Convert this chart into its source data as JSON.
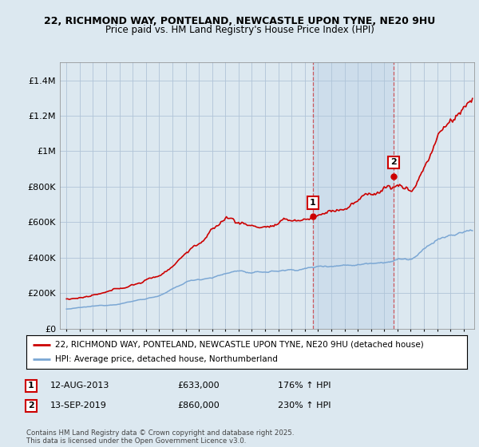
{
  "title_line1": "22, RICHMOND WAY, PONTELAND, NEWCASTLE UPON TYNE, NE20 9HU",
  "title_line2": "Price paid vs. HM Land Registry's House Price Index (HPI)",
  "ylabel_ticks": [
    "£0",
    "£200K",
    "£400K",
    "£600K",
    "£800K",
    "£1M",
    "£1.2M",
    "£1.4M"
  ],
  "ytick_values": [
    0,
    200000,
    400000,
    600000,
    800000,
    1000000,
    1200000,
    1400000
  ],
  "ylim": [
    0,
    1500000
  ],
  "xlim_start": 1994.5,
  "xlim_end": 2025.8,
  "red_line_color": "#cc0000",
  "blue_line_color": "#7ba7d4",
  "transaction1": {
    "date_num": 2013.62,
    "price": 633000,
    "label": "1"
  },
  "transaction2": {
    "date_num": 2019.71,
    "price": 860000,
    "label": "2"
  },
  "annotation1": {
    "label": "1",
    "date": "12-AUG-2013",
    "price": "£633,000",
    "hpi": "176% ↑ HPI"
  },
  "annotation2": {
    "label": "2",
    "date": "13-SEP-2019",
    "price": "£860,000",
    "hpi": "230% ↑ HPI"
  },
  "legend_line1": "22, RICHMOND WAY, PONTELAND, NEWCASTLE UPON TYNE, NE20 9HU (detached house)",
  "legend_line2": "HPI: Average price, detached house, Northumberland",
  "footnote": "Contains HM Land Registry data © Crown copyright and database right 2025.\nThis data is licensed under the Open Government Licence v3.0.",
  "background_color": "#dce8f0",
  "plot_bg_color": "#dce8f0",
  "grid_color": "#b0c4d8",
  "vline_color": "#cc0000",
  "vline_alpha": 0.6,
  "span_color": "#c0d4e8",
  "span_alpha": 0.5
}
